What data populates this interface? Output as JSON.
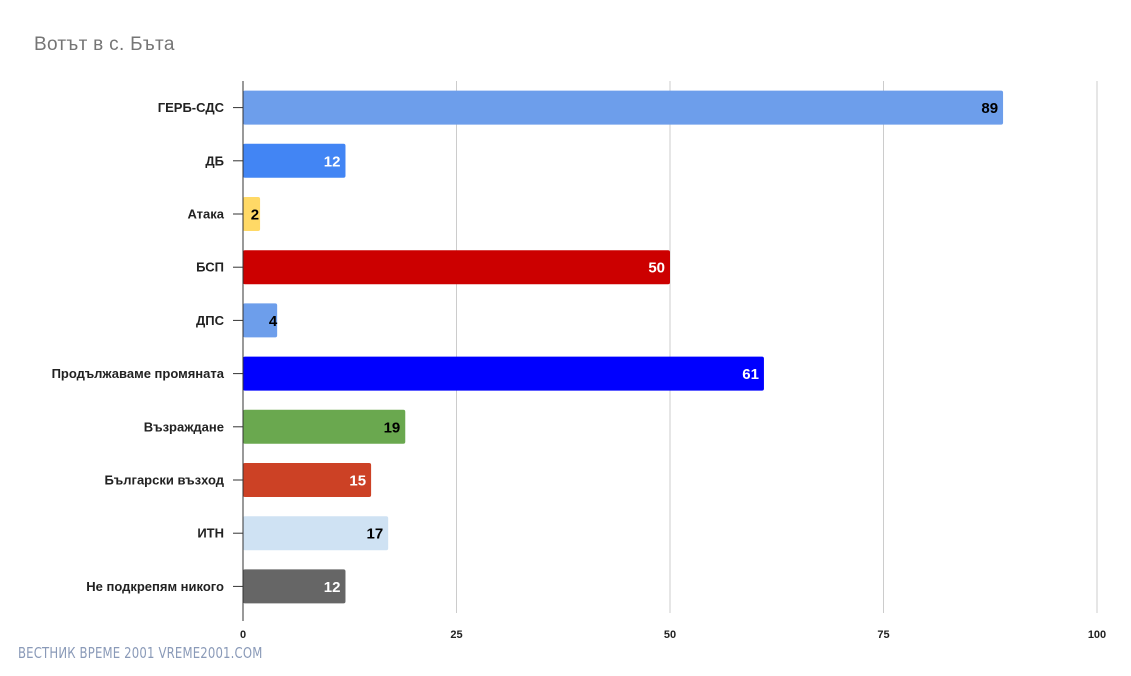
{
  "chart_data": {
    "type": "bar",
    "orientation": "horizontal",
    "title": "Вотът в с. Бъта",
    "xlabel": "",
    "ylabel": "",
    "xlim": [
      0,
      100
    ],
    "x_ticks": [
      0,
      25,
      50,
      75,
      100
    ],
    "grid": true,
    "legend": "none",
    "categories": [
      "ГЕРБ-СДС",
      "ДБ",
      "Атака",
      "БСП",
      "ДПС",
      "Продължаваме промяната",
      "Възраждане",
      "Български възход",
      "ИТН",
      "Не подкрепям никого"
    ],
    "values": [
      89,
      12,
      2,
      50,
      4,
      61,
      19,
      15,
      17,
      12
    ],
    "bar_colors": [
      "#6d9eeb",
      "#4285f4",
      "#ffd966",
      "#cc0000",
      "#6d9eeb",
      "#0000ff",
      "#6aa84f",
      "#cc4125",
      "#cfe2f3",
      "#666666"
    ],
    "label_colors": [
      "#000000",
      "#ffffff",
      "#000000",
      "#ffffff",
      "#000000",
      "#ffffff",
      "#000000",
      "#ffffff",
      "#000000",
      "#ffffff"
    ]
  },
  "watermark": "ВЕСТНИК ВРЕМЕ 2001  VREME2001.COM"
}
